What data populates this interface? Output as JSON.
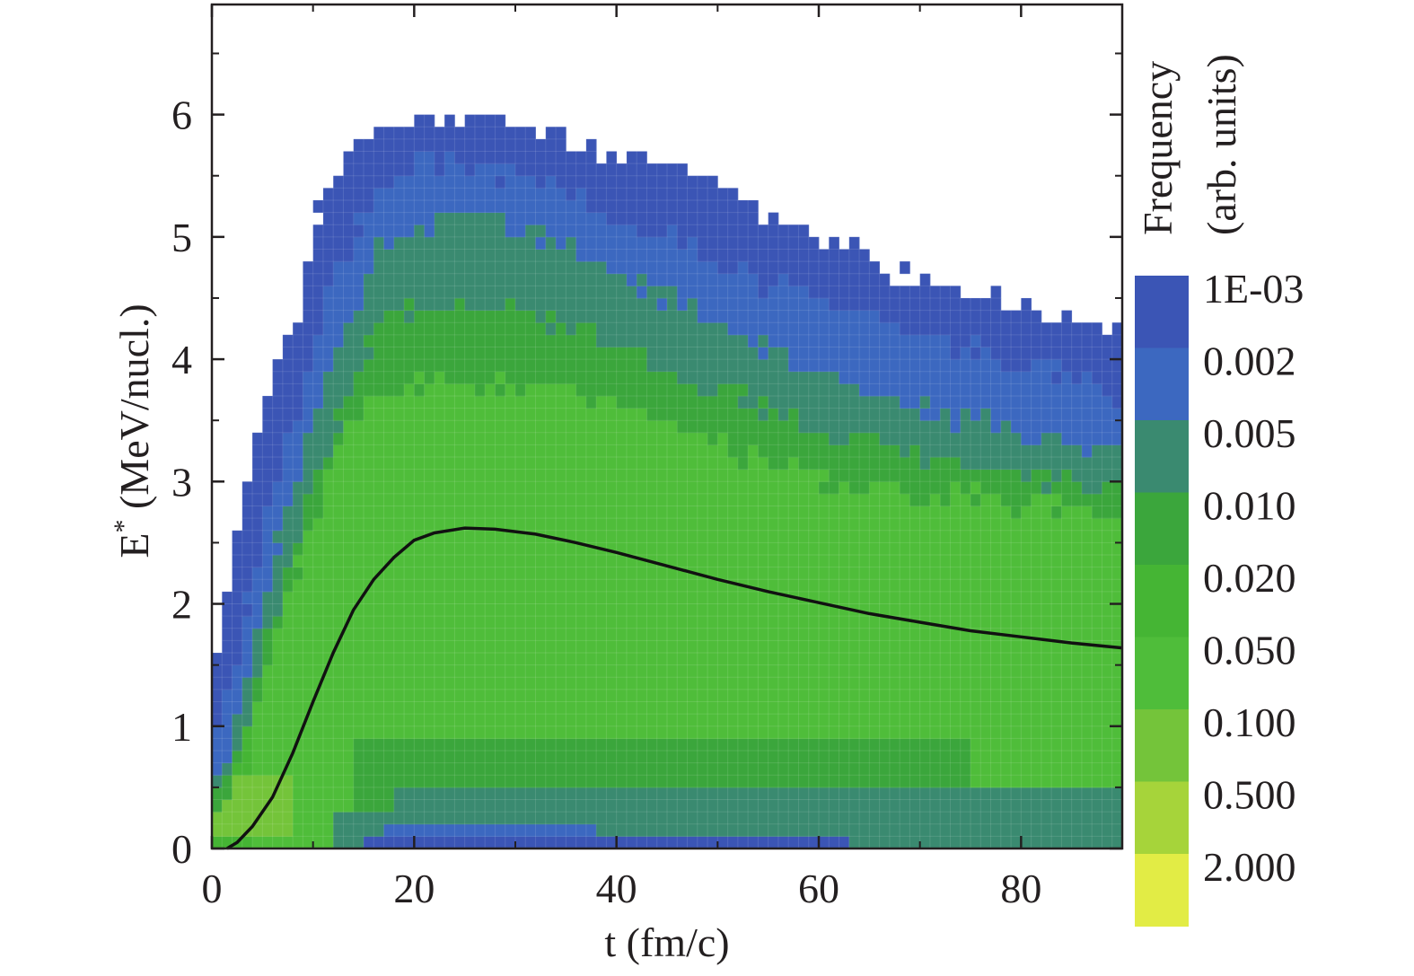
{
  "chart_data": {
    "type": "heatmap",
    "title": "",
    "xlabel": "t (fm/c)",
    "ylabel_main": "E",
    "ylabel_sup": "*",
    "ylabel_rest": " (MeV/nucl.)",
    "xlim": [
      0,
      90
    ],
    "ylim": [
      0,
      6.9
    ],
    "xticks": [
      0,
      20,
      40,
      60,
      80
    ],
    "yticks": [
      0,
      1,
      2,
      3,
      4,
      5,
      6
    ],
    "grid": false,
    "colorbar": {
      "title_line1": "Frequency",
      "title_line2": "(arb. units)",
      "labels": [
        "1E-03",
        "0.002",
        "0.005",
        "0.010",
        "0.020",
        "0.050",
        "0.100",
        "0.500",
        "2.000"
      ],
      "colors": [
        "#3b55b5",
        "#3c68c0",
        "#3a8a70",
        "#3ba63c",
        "#45b534",
        "#4fbd3a",
        "#74c43a",
        "#a6d43a",
        "#e2ec45"
      ]
    },
    "heatmap_profile": {
      "t": [
        0,
        1,
        2,
        3,
        4,
        5,
        6,
        8,
        10,
        12,
        14,
        16,
        18,
        20,
        25,
        30,
        35,
        40,
        45,
        50,
        55,
        60,
        65,
        70,
        75,
        80,
        85,
        90
      ],
      "top_edge": [
        1.3,
        1.8,
        2.4,
        2.8,
        3.2,
        3.6,
        3.9,
        4.2,
        5.1,
        5.4,
        5.7,
        5.9,
        5.9,
        5.95,
        5.95,
        5.95,
        5.85,
        5.6,
        5.6,
        5.4,
        5.2,
        5.0,
        4.8,
        4.6,
        4.6,
        4.4,
        4.3,
        4.3
      ],
      "e002_edge": [
        0.8,
        1.1,
        1.4,
        1.8,
        2.2,
        2.6,
        2.9,
        3.4,
        4.2,
        4.6,
        5.0,
        5.3,
        5.5,
        5.6,
        5.6,
        5.5,
        5.4,
        5.2,
        5.0,
        4.8,
        4.6,
        4.5,
        4.4,
        4.2,
        4.1,
        4.0,
        3.9,
        3.6
      ],
      "e005_edge": [
        0.5,
        0.7,
        0.9,
        1.3,
        1.6,
        2.0,
        2.3,
        2.9,
        3.6,
        4.0,
        4.4,
        4.8,
        5.0,
        5.1,
        5.2,
        5.1,
        4.9,
        4.7,
        4.5,
        4.3,
        4.1,
        3.9,
        3.7,
        3.6,
        3.5,
        3.4,
        3.35,
        3.3
      ],
      "e010_edge": [
        0.3,
        0.5,
        0.7,
        1.0,
        1.3,
        1.6,
        1.9,
        2.4,
        3.0,
        3.4,
        3.9,
        4.2,
        4.4,
        4.4,
        4.4,
        4.4,
        4.3,
        4.1,
        3.9,
        3.8,
        3.6,
        3.45,
        3.3,
        3.2,
        3.1,
        3.05,
        3.0,
        2.9
      ],
      "e020_edge": [
        0.2,
        0.3,
        0.5,
        0.8,
        1.1,
        1.4,
        1.7,
        2.2,
        2.7,
        3.2,
        3.5,
        3.7,
        3.8,
        3.8,
        3.8,
        3.8,
        3.7,
        3.6,
        3.5,
        3.3,
        3.2,
        3.0,
        2.95,
        2.9,
        2.85,
        2.8,
        2.75,
        2.7
      ]
    },
    "mean_curve": {
      "t": [
        1.5,
        2.5,
        4,
        6,
        8,
        10,
        12,
        14,
        16,
        18,
        20,
        22,
        25,
        28,
        32,
        36,
        40,
        45,
        50,
        55,
        60,
        65,
        70,
        75,
        80,
        85,
        90
      ],
      "E": [
        0.0,
        0.05,
        0.18,
        0.42,
        0.78,
        1.2,
        1.6,
        1.95,
        2.2,
        2.38,
        2.52,
        2.58,
        2.62,
        2.61,
        2.57,
        2.5,
        2.42,
        2.31,
        2.2,
        2.1,
        2.01,
        1.92,
        1.85,
        1.78,
        1.73,
        1.68,
        1.64
      ]
    }
  }
}
